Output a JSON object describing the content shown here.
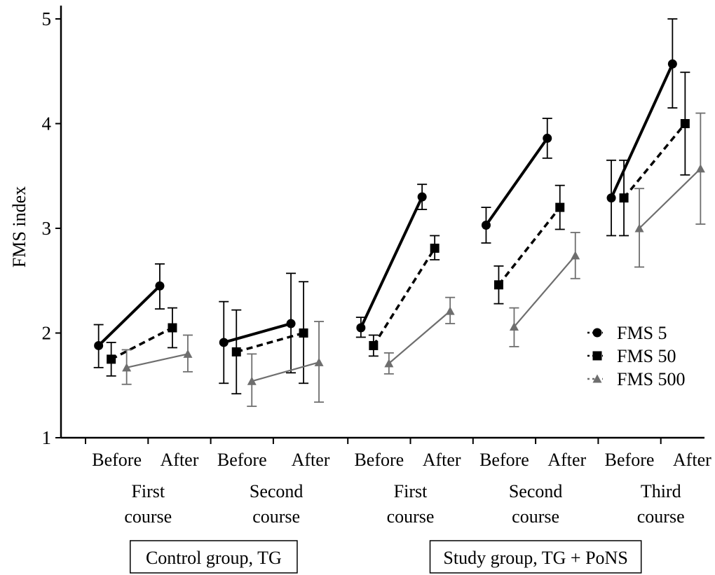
{
  "chart_data": {
    "type": "line",
    "ylabel": "FMS index",
    "ylim": [
      1,
      5
    ],
    "yticks": [
      "1",
      "2",
      "3",
      "4",
      "5"
    ],
    "time_labels": [
      "Before",
      "After",
      "Before",
      "After",
      "Before",
      "After",
      "Before",
      "After",
      "Before",
      "After"
    ],
    "courses": [
      {
        "label_line1": "First",
        "label_line2": "course"
      },
      {
        "label_line1": "Second",
        "label_line2": "course"
      },
      {
        "label_line1": "First",
        "label_line2": "course"
      },
      {
        "label_line1": "Second",
        "label_line2": "course"
      },
      {
        "label_line1": "Third",
        "label_line2": "course"
      }
    ],
    "groups": [
      {
        "label": "Control group, TG",
        "courses": [
          0,
          1
        ]
      },
      {
        "label": "Study group, TG + PoNS",
        "courses": [
          2,
          3,
          4
        ]
      }
    ],
    "legend": {
      "position": "right",
      "entries": [
        "FMS 5",
        "FMS 50",
        "FMS 500"
      ]
    },
    "series": [
      {
        "name": "FMS 5",
        "color": "#000000",
        "marker": "circle",
        "line_style": "solid",
        "values": [
          [
            1.88,
            2.45
          ],
          [
            1.91,
            2.09
          ],
          [
            2.05,
            3.3
          ],
          [
            3.03,
            3.86
          ],
          [
            3.29,
            4.57
          ]
        ],
        "errors": [
          [
            [
              1.67,
              2.08
            ],
            [
              2.23,
              2.66
            ]
          ],
          [
            [
              1.52,
              2.3
            ],
            [
              1.62,
              2.57
            ]
          ],
          [
            [
              1.96,
              2.15
            ],
            [
              3.18,
              3.42
            ]
          ],
          [
            [
              2.86,
              3.2
            ],
            [
              3.67,
              4.05
            ]
          ],
          [
            [
              2.93,
              3.65
            ],
            [
              4.15,
              5.0
            ]
          ]
        ]
      },
      {
        "name": "FMS 50",
        "color": "#000000",
        "marker": "square",
        "line_style": "dashed",
        "values": [
          [
            1.75,
            2.05
          ],
          [
            1.82,
            2.0
          ],
          [
            1.88,
            2.81
          ],
          [
            2.46,
            3.2
          ],
          [
            3.29,
            4.0
          ]
        ],
        "errors": [
          [
            [
              1.59,
              1.91
            ],
            [
              1.86,
              2.24
            ]
          ],
          [
            [
              1.42,
              2.22
            ],
            [
              1.52,
              2.49
            ]
          ],
          [
            [
              1.78,
              1.98
            ],
            [
              2.7,
              2.93
            ]
          ],
          [
            [
              2.28,
              2.64
            ],
            [
              2.99,
              3.41
            ]
          ],
          [
            [
              2.93,
              3.65
            ],
            [
              3.51,
              4.49
            ]
          ]
        ]
      },
      {
        "name": "FMS 500",
        "color": "#6e6e6e",
        "marker": "triangle",
        "line_style": "solid",
        "values": [
          [
            1.67,
            1.8
          ],
          [
            1.54,
            1.72
          ],
          [
            1.71,
            2.21
          ],
          [
            2.06,
            2.74
          ],
          [
            3.0,
            3.57
          ]
        ],
        "errors": [
          [
            [
              1.51,
              1.84
            ],
            [
              1.63,
              1.98
            ]
          ],
          [
            [
              1.3,
              1.8
            ],
            [
              1.34,
              2.11
            ]
          ],
          [
            [
              1.61,
              1.81
            ],
            [
              2.09,
              2.34
            ]
          ],
          [
            [
              1.87,
              2.24
            ],
            [
              2.52,
              2.96
            ]
          ],
          [
            [
              2.63,
              3.38
            ],
            [
              3.04,
              4.1
            ]
          ]
        ]
      }
    ]
  }
}
